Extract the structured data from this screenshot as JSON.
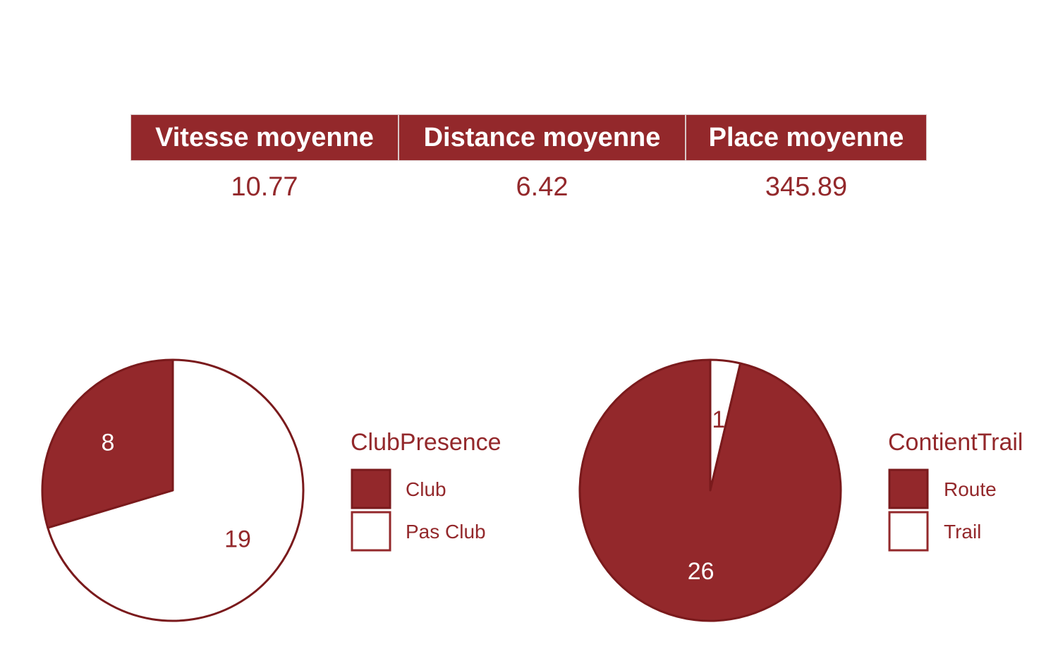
{
  "stats": {
    "headers": [
      "Vitesse moyenne",
      "Distance moyenne",
      "Place moyenne"
    ],
    "values": [
      "10.77",
      "6.42",
      "345.89"
    ]
  },
  "colors": {
    "accent": "#93282b",
    "accent_dark": "#7a1a1c",
    "background": "#ffffff"
  },
  "chart_data": [
    {
      "type": "pie",
      "legend_title": "ClubPresence",
      "legend_position": "right",
      "categories": [
        "Club",
        "Pas Club"
      ],
      "values": [
        8,
        19
      ],
      "labels": [
        "8",
        "19"
      ],
      "fills": [
        "#93282b",
        "#ffffff"
      ]
    },
    {
      "type": "pie",
      "legend_title": "ContientTrail",
      "legend_position": "right",
      "categories": [
        "Route",
        "Trail"
      ],
      "values": [
        26,
        1
      ],
      "labels": [
        "26",
        "1"
      ],
      "fills": [
        "#93282b",
        "#ffffff"
      ]
    }
  ]
}
